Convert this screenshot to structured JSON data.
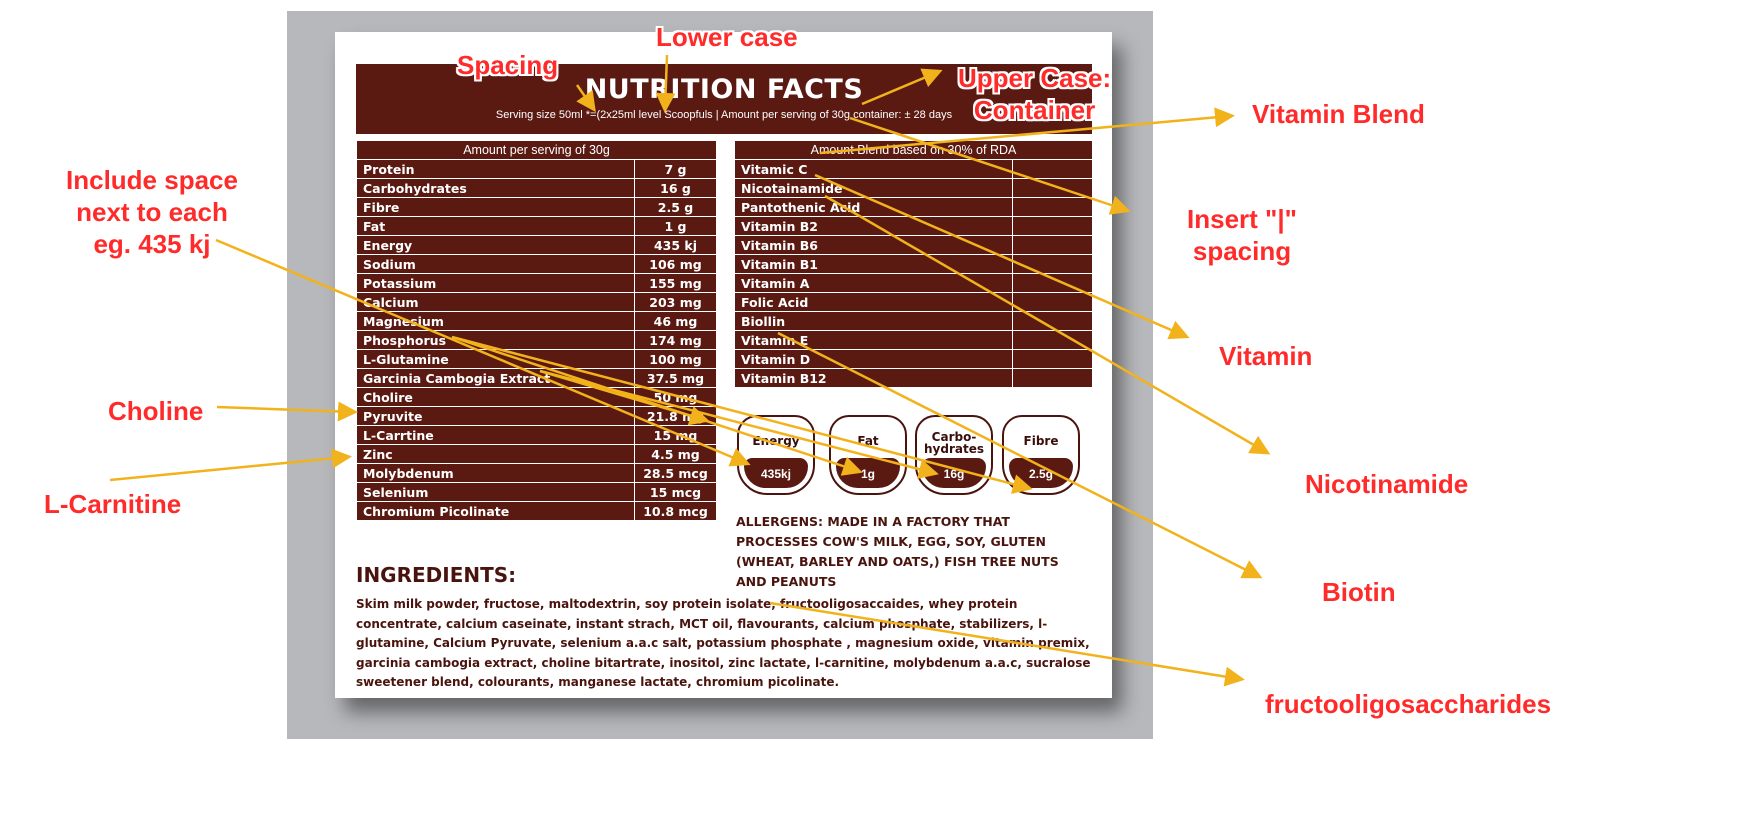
{
  "label": {
    "title": "NUTRITION FACTS",
    "serving": "Serving size 50ml *=(2x25ml level  Scoopfuls | Amount per serving of 30g container: ± 28 days",
    "left_table": {
      "header": "Amount per serving of 30g",
      "rows": [
        {
          "name": "Protein",
          "value": "7 g"
        },
        {
          "name": "Carbohydrates",
          "value": "16 g"
        },
        {
          "name": "Fibre",
          "value": "2.5 g"
        },
        {
          "name": "Fat",
          "value": "1 g"
        },
        {
          "name": "Energy",
          "value": "435 kj"
        },
        {
          "name": "Sodium",
          "value": "106 mg"
        },
        {
          "name": "Potassium",
          "value": "155 mg"
        },
        {
          "name": "Calcium",
          "value": "203 mg"
        },
        {
          "name": "Magnesium",
          "value": "46 mg"
        },
        {
          "name": "Phosphorus",
          "value": "174 mg"
        },
        {
          "name": "L-Glutamine",
          "value": "100 mg"
        },
        {
          "name": "Garcinia Cambogia Extract",
          "value": "37.5 mg"
        },
        {
          "name": "Cholire",
          "value": "50 mg"
        },
        {
          "name": "Pyruvite",
          "value": "21.8 mg"
        },
        {
          "name": "L-Carrtine",
          "value": "15 mg"
        },
        {
          "name": "Zinc",
          "value": "4.5 mg"
        },
        {
          "name": "Molybdenum",
          "value": "28.5 mcg"
        },
        {
          "name": "Selenium",
          "value": "15 mcg"
        },
        {
          "name": "Chromium Picolinate",
          "value": "10.8 mcg"
        }
      ]
    },
    "right_table": {
      "header": "Amount Blend based on 30% of RDA",
      "rows": [
        {
          "name": "Vitamic C",
          "value": ""
        },
        {
          "name": "Nicotainamide",
          "value": ""
        },
        {
          "name": "Pantothenic Acid",
          "value": ""
        },
        {
          "name": "Vitamin B2",
          "value": ""
        },
        {
          "name": "Vitamin B6",
          "value": ""
        },
        {
          "name": "Vitamin B1",
          "value": ""
        },
        {
          "name": "Vitamin A",
          "value": ""
        },
        {
          "name": "Folic Acid",
          "value": ""
        },
        {
          "name": "Biollin",
          "value": ""
        },
        {
          "name": "Vitamin E",
          "value": ""
        },
        {
          "name": "Vitamin D",
          "value": ""
        },
        {
          "name": "Vitamin B12",
          "value": ""
        }
      ]
    },
    "badges": [
      {
        "name": "Energy",
        "value": "435kj"
      },
      {
        "name": "Fat",
        "value": "1g"
      },
      {
        "name": "Carbo-\nhydrates",
        "value": "16g"
      },
      {
        "name": "Fibre",
        "value": "2.5g"
      }
    ],
    "allergens": "ALLERGENS: MADE IN A FACTORY THAT PROCESSES COW'S MILK, EGG, SOY, GLUTEN (WHEAT, BARLEY AND OATS,) FISH TREE NUTS AND PEANUTS",
    "ingredients_title": "INGREDIENTS:",
    "ingredients": "Skim milk powder, fructose, maltodextrin, soy protein isolate, fructooligosaccaides, whey protein concentrate, calcium caseinate, instant strach, MCT oil, flavourants, calcium phosphate, stabilizers, l-glutamine, Calcium Pyruvate, selenium a.a.c salt, potassium phosphate , magnesium oxide, vitamin premix, garcinia cambogia extract, choline bitartrate, inositol, zinc lactate, l-carnitine, molybdenum a.a.c, sucralose sweetener blend, colourants, manganese lactate, chromium picolinate."
  },
  "annotations": {
    "spacing": "Spacing",
    "lower_case": "Lower case",
    "upper_case": "Upper Case:\nContainer",
    "vitamin_blend": "Vitamin Blend",
    "include_space": "Include space\nnext to each\neg. 435 kj",
    "insert_pipe": "Insert \"|\"\nspacing",
    "vitamin": "Vitamin",
    "choline": "Choline",
    "nicotinamide": "Nicotinamide",
    "l_carnitine": "L-Carnitine",
    "biotin": "Biotin",
    "fructo": "fructooligosaccharides"
  },
  "colors": {
    "label_maroon": "#5a1a12",
    "annotation_red": "#ff2b2b",
    "arrow_yellow": "#f2b21c",
    "backdrop_grey": "#b7b8bb"
  }
}
